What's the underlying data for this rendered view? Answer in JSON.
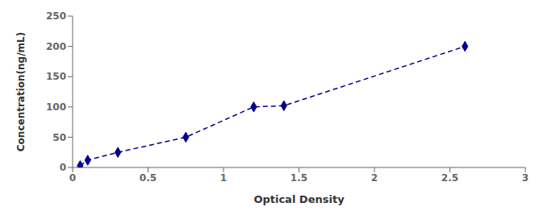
{
  "chart_data": {
    "type": "line",
    "x": [
      0.05,
      0.1,
      0.3,
      0.75,
      1.2,
      1.4,
      2.6
    ],
    "values": [
      3,
      12,
      25,
      50,
      100,
      102,
      200
    ],
    "color": "#00008B",
    "marker": "diamond",
    "line_style": "dashed",
    "xlabel": "Optical Density",
    "ylabel": "Concentration(ng/mL)",
    "xlim": [
      0,
      3
    ],
    "ylim": [
      0,
      250
    ],
    "xticks": [
      0,
      0.5,
      1,
      1.5,
      2,
      2.5,
      3
    ],
    "yticks": [
      0,
      50,
      100,
      150,
      200,
      250
    ],
    "grid": false
  }
}
